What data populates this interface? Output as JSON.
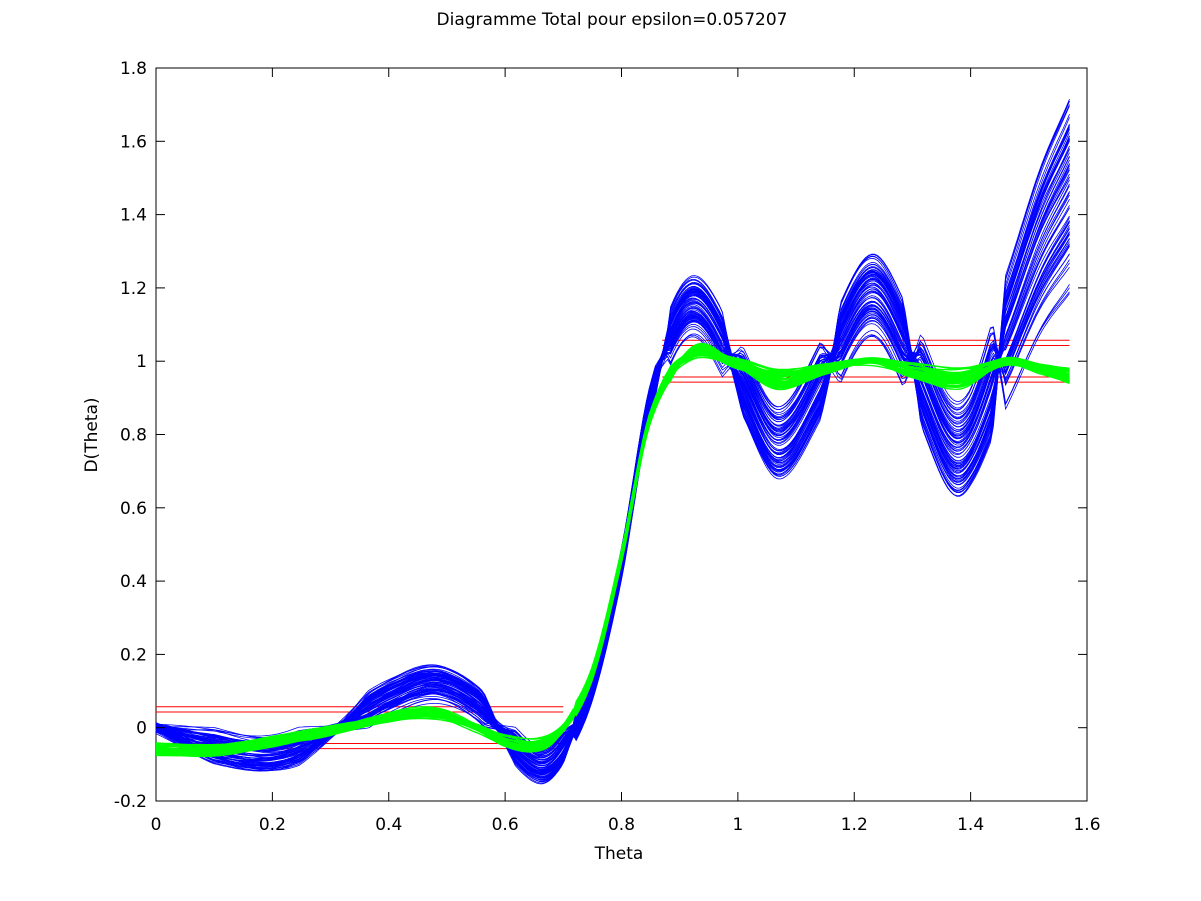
{
  "chart_data": {
    "type": "line",
    "title": "Diagramme Total pour epsilon=0.057207",
    "xlabel": "Theta",
    "ylabel": "D(Theta)",
    "xlim": [
      0,
      1.6
    ],
    "ylim": [
      -0.2,
      1.8
    ],
    "x_ticks": [
      "0",
      "0.2",
      "0.4",
      "0.6",
      "0.8",
      "1",
      "1.2",
      "1.4",
      "1.6"
    ],
    "y_ticks": [
      "-0.2",
      "0",
      "0.2",
      "0.4",
      "0.6",
      "0.8",
      "1",
      "1.2",
      "1.4",
      "1.6",
      "1.8"
    ],
    "colors": {
      "blue_family": "#0000ff",
      "green_family": "#00ff00",
      "tolerance_lines": "#ff0000"
    },
    "series": [
      {
        "color": "blue",
        "note_count": 80,
        "x": [
          0,
          0.1,
          0.2,
          0.3,
          0.4,
          0.48,
          0.55,
          0.6,
          0.66,
          0.7,
          0.75,
          0.8,
          0.85,
          0.92,
          1.0,
          1.07,
          1.15,
          1.23,
          1.3,
          1.38,
          1.46,
          1.52,
          1.57
        ],
        "values": [
          0.0,
          -0.05,
          -0.07,
          -0.01,
          0.08,
          0.12,
          0.07,
          -0.02,
          -0.1,
          -0.05,
          0.12,
          0.45,
          0.9,
          1.15,
          0.97,
          0.78,
          0.97,
          1.18,
          1.0,
          0.76,
          1.05,
          1.3,
          1.45
        ]
      },
      {
        "color": "green",
        "note_count": 40,
        "x": [
          0,
          0.1,
          0.2,
          0.3,
          0.4,
          0.48,
          0.55,
          0.6,
          0.66,
          0.7,
          0.75,
          0.8,
          0.85,
          0.92,
          1.0,
          1.07,
          1.15,
          1.23,
          1.3,
          1.38,
          1.46,
          1.52,
          1.57
        ],
        "values": [
          -0.06,
          -0.06,
          -0.04,
          -0.01,
          0.03,
          0.04,
          0.0,
          -0.04,
          -0.05,
          0.0,
          0.15,
          0.47,
          0.85,
          1.02,
          0.99,
          0.95,
          0.98,
          1.0,
          0.97,
          0.95,
          1.0,
          0.98,
          0.96
        ]
      }
    ],
    "horizontal_lines": [
      {
        "y": 0.057,
        "x_range": [
          0,
          0.7
        ]
      },
      {
        "y": 0.043,
        "x_range": [
          0,
          0.7
        ]
      },
      {
        "y": -0.043,
        "x_range": [
          0,
          0.7
        ]
      },
      {
        "y": -0.057,
        "x_range": [
          0,
          0.7
        ]
      },
      {
        "y": 1.057,
        "x_range": [
          0.87,
          1.57
        ]
      },
      {
        "y": 1.043,
        "x_range": [
          0.87,
          1.57
        ]
      },
      {
        "y": 0.957,
        "x_range": [
          0.87,
          1.57
        ]
      },
      {
        "y": 0.943,
        "x_range": [
          0.87,
          1.57
        ]
      }
    ],
    "grid": false,
    "legend": "none"
  }
}
